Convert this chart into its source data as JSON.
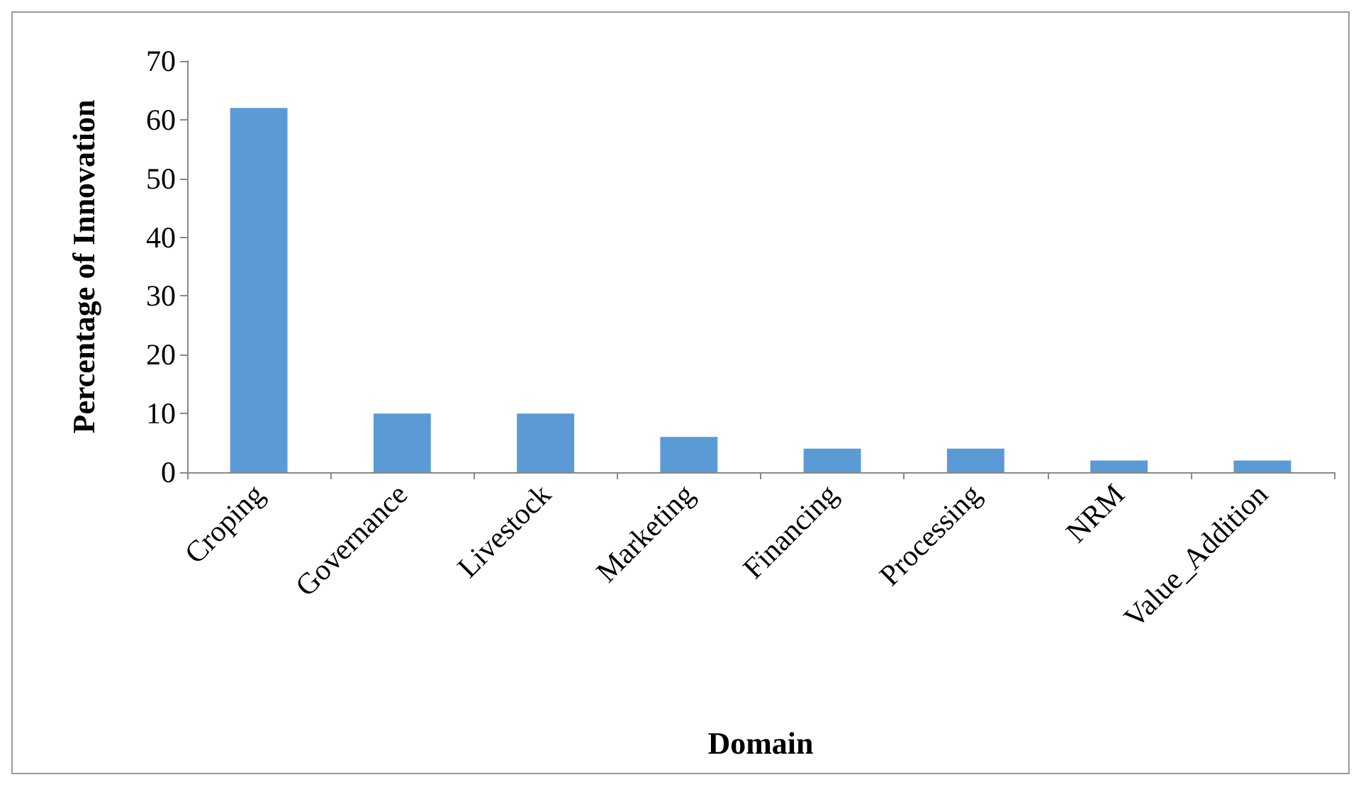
{
  "chart_data": {
    "type": "bar",
    "xlabel": "Domain",
    "ylabel": "Percentage of Innovation",
    "categories": [
      "Croping",
      "Governance",
      "Livestock",
      "Marketing",
      "Financing",
      "Processing",
      "NRM",
      "Value_Addition"
    ],
    "values": [
      62,
      10,
      10,
      6,
      4,
      4,
      2,
      2
    ],
    "color": "#5b9bd5",
    "ylim": [
      0,
      70
    ],
    "yticks": [
      0,
      10,
      20,
      30,
      40,
      50,
      60,
      70
    ],
    "grid": false
  }
}
